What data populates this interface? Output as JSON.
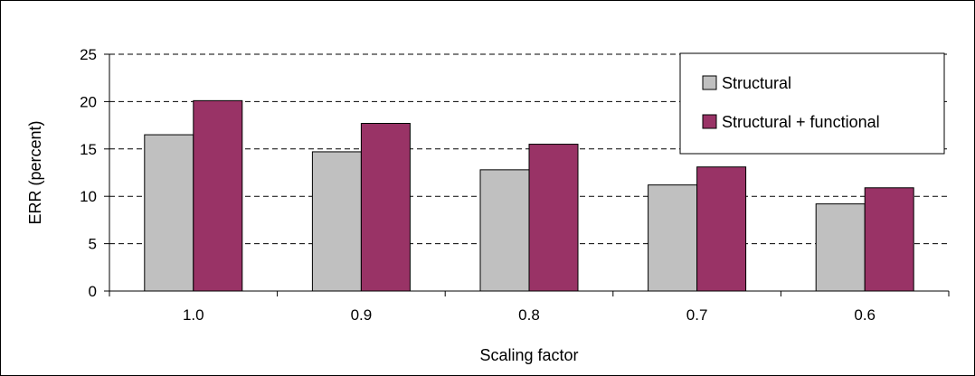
{
  "chart_data": {
    "type": "bar",
    "title": "",
    "xlabel": "Scaling factor",
    "ylabel": "ERR (percent)",
    "categories": [
      "1.0",
      "0.9",
      "0.8",
      "0.7",
      "0.6"
    ],
    "series": [
      {
        "name": "Structural",
        "values": [
          16.5,
          14.7,
          12.8,
          11.2,
          9.2
        ],
        "color": "#c0c0c0"
      },
      {
        "name": "Structural + functional",
        "values": [
          20.1,
          17.7,
          15.5,
          13.1,
          10.9
        ],
        "color": "#993366"
      }
    ],
    "ylim": [
      0,
      25
    ],
    "yticks": [
      0,
      5,
      10,
      15,
      20,
      25
    ],
    "grid": true,
    "legend_position": "top-right"
  }
}
